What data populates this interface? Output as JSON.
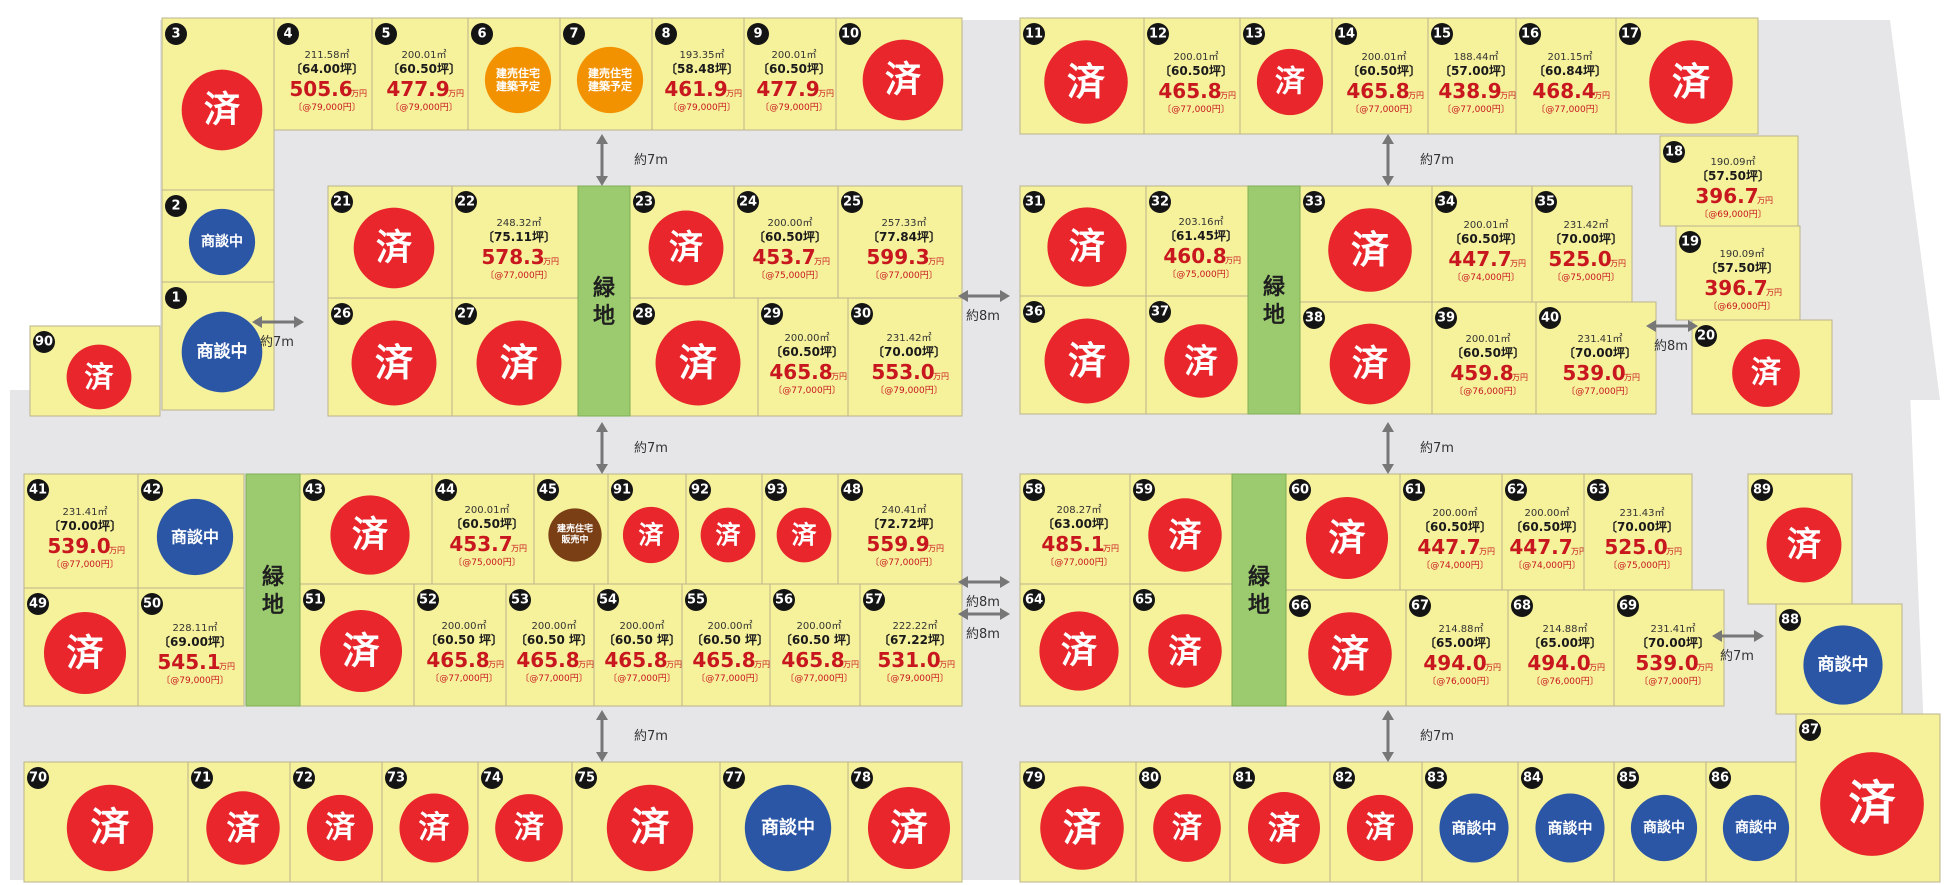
{
  "colors": {
    "sold": "#e8262b",
    "negotiating": "#2b56a6",
    "planned": "#f39200",
    "onsale": "#7b3f16",
    "lot": "#f6f19b",
    "green": "#9ccb6f",
    "road": "#e6e6e8"
  },
  "labels": {
    "sold": "済",
    "negotiating": "商談中",
    "planned": [
      "建売住宅",
      "建築予定"
    ],
    "onsale": [
      "建売住宅",
      "販売中"
    ],
    "unit": "万円",
    "green_belt": "緑地"
  },
  "roads": [
    "約7m",
    "約7m",
    "約7m",
    "約8m",
    "約8m",
    "約7m",
    "約7m",
    "約8m",
    "約8m",
    "約7m",
    "約7m",
    "約7m"
  ],
  "lots": [
    {
      "no": "1",
      "status": "negotiating"
    },
    {
      "no": "2",
      "status": "negotiating"
    },
    {
      "no": "3",
      "status": "sold"
    },
    {
      "no": "4",
      "status": "available",
      "area": "211.58㎡",
      "tsubo": "〔64.00坪〕",
      "price": "505.6",
      "per": "〔@79,000円〕"
    },
    {
      "no": "5",
      "status": "available",
      "area": "200.01㎡",
      "tsubo": "〔60.50坪〕",
      "price": "477.9",
      "per": "〔@79,000円〕"
    },
    {
      "no": "6",
      "status": "planned"
    },
    {
      "no": "7",
      "status": "planned"
    },
    {
      "no": "8",
      "status": "available",
      "area": "193.35㎡",
      "tsubo": "〔58.48坪〕",
      "price": "461.9",
      "per": "〔@79,000円〕"
    },
    {
      "no": "9",
      "status": "available",
      "area": "200.01㎡",
      "tsubo": "〔60.50坪〕",
      "price": "477.9",
      "per": "〔@79,000円〕"
    },
    {
      "no": "10",
      "status": "sold"
    },
    {
      "no": "11",
      "status": "sold"
    },
    {
      "no": "12",
      "status": "available",
      "area": "200.01㎡",
      "tsubo": "〔60.50坪〕",
      "price": "465.8",
      "per": "〔@77,000円〕"
    },
    {
      "no": "13",
      "status": "sold"
    },
    {
      "no": "14",
      "status": "available",
      "area": "200.01㎡",
      "tsubo": "〔60.50坪〕",
      "price": "465.8",
      "per": "〔@77,000円〕"
    },
    {
      "no": "15",
      "status": "available",
      "area": "188.44㎡",
      "tsubo": "〔57.00坪〕",
      "price": "438.9",
      "per": "〔@77,000円〕"
    },
    {
      "no": "16",
      "status": "available",
      "area": "201.15㎡",
      "tsubo": "〔60.84坪〕",
      "price": "468.4",
      "per": "〔@77,000円〕"
    },
    {
      "no": "17",
      "status": "sold"
    },
    {
      "no": "18",
      "status": "available",
      "area": "190.09㎡",
      "tsubo": "〔57.50坪〕",
      "price": "396.7",
      "per": "〔@69,000円〕"
    },
    {
      "no": "19",
      "status": "available",
      "area": "190.09㎡",
      "tsubo": "〔57.50坪〕",
      "price": "396.7",
      "per": "〔@69,000円〕"
    },
    {
      "no": "20",
      "status": "sold"
    },
    {
      "no": "21",
      "status": "sold"
    },
    {
      "no": "22",
      "status": "available",
      "area": "248.32㎡",
      "tsubo": "〔75.11坪〕",
      "price": "578.3",
      "per": "〔@77,000円〕"
    },
    {
      "no": "23",
      "status": "sold"
    },
    {
      "no": "24",
      "status": "available",
      "area": "200.00㎡",
      "tsubo": "〔60.50坪〕",
      "price": "453.7",
      "per": "〔@75,000円〕"
    },
    {
      "no": "25",
      "status": "available",
      "area": "257.33㎡",
      "tsubo": "〔77.84坪〕",
      "price": "599.3",
      "per": "〔@77,000円〕"
    },
    {
      "no": "26",
      "status": "sold"
    },
    {
      "no": "27",
      "status": "sold"
    },
    {
      "no": "28",
      "status": "sold"
    },
    {
      "no": "29",
      "status": "available",
      "area": "200.00㎡",
      "tsubo": "〔60.50坪〕",
      "price": "465.8",
      "per": "〔@77,000円〕"
    },
    {
      "no": "30",
      "status": "available",
      "area": "231.42㎡",
      "tsubo": "〔70.00坪〕",
      "price": "553.0",
      "per": "〔@79,000円〕"
    },
    {
      "no": "31",
      "status": "sold"
    },
    {
      "no": "32",
      "status": "available",
      "area": "203.16㎡",
      "tsubo": "〔61.45坪〕",
      "price": "460.8",
      "per": "〔@75,000円〕"
    },
    {
      "no": "33",
      "status": "sold"
    },
    {
      "no": "34",
      "status": "available",
      "area": "200.01㎡",
      "tsubo": "〔60.50坪〕",
      "price": "447.7",
      "per": "〔@74,000円〕"
    },
    {
      "no": "35",
      "status": "available",
      "area": "231.42㎡",
      "tsubo": "〔70.00坪〕",
      "price": "525.0",
      "per": "〔@75,000円〕"
    },
    {
      "no": "36",
      "status": "sold"
    },
    {
      "no": "37",
      "status": "sold"
    },
    {
      "no": "38",
      "status": "sold"
    },
    {
      "no": "39",
      "status": "available",
      "area": "200.01㎡",
      "tsubo": "〔60.50坪〕",
      "price": "459.8",
      "per": "〔@76,000円〕"
    },
    {
      "no": "40",
      "status": "available",
      "area": "231.41㎡",
      "tsubo": "〔70.00坪〕",
      "price": "539.0",
      "per": "〔@77,000円〕"
    },
    {
      "no": "41",
      "status": "available",
      "area": "231.41㎡",
      "tsubo": "〔70.00坪〕",
      "price": "539.0",
      "per": "〔@77,000円〕"
    },
    {
      "no": "42",
      "status": "negotiating"
    },
    {
      "no": "43",
      "status": "sold"
    },
    {
      "no": "44",
      "status": "available",
      "area": "200.01㎡",
      "tsubo": "〔60.50坪〕",
      "price": "453.7",
      "per": "〔@75,000円〕"
    },
    {
      "no": "45",
      "status": "onsale"
    },
    {
      "no": "48",
      "status": "available",
      "area": "240.41㎡",
      "tsubo": "〔72.72坪〕",
      "price": "559.9",
      "per": "〔@77,000円〕"
    },
    {
      "no": "49",
      "status": "sold"
    },
    {
      "no": "50",
      "status": "available",
      "area": "228.11㎡",
      "tsubo": "〔69.00坪〕",
      "price": "545.1",
      "per": "〔@79,000円〕"
    },
    {
      "no": "51",
      "status": "sold"
    },
    {
      "no": "52",
      "status": "available",
      "area": "200.00㎡",
      "tsubo": "〔60.50 坪〕",
      "price": "465.8",
      "per": "〔@77,000円〕"
    },
    {
      "no": "53",
      "status": "available",
      "area": "200.00㎡",
      "tsubo": "〔60.50 坪〕",
      "price": "465.8",
      "per": "〔@77,000円〕"
    },
    {
      "no": "54",
      "status": "available",
      "area": "200.00㎡",
      "tsubo": "〔60.50 坪〕",
      "price": "465.8",
      "per": "〔@77,000円〕"
    },
    {
      "no": "55",
      "status": "available",
      "area": "200.00㎡",
      "tsubo": "〔60.50 坪〕",
      "price": "465.8",
      "per": "〔@77,000円〕"
    },
    {
      "no": "56",
      "status": "available",
      "area": "200.00㎡",
      "tsubo": "〔60.50 坪〕",
      "price": "465.8",
      "per": "〔@77,000円〕"
    },
    {
      "no": "57",
      "status": "available",
      "area": "222.22㎡",
      "tsubo": "〔67.22坪〕",
      "price": "531.0",
      "per": "〔@79,000円〕"
    },
    {
      "no": "58",
      "status": "available",
      "area": "208.27㎡",
      "tsubo": "〔63.00坪〕",
      "price": "485.1",
      "per": "〔@77,000円〕"
    },
    {
      "no": "59",
      "status": "sold"
    },
    {
      "no": "60",
      "status": "sold"
    },
    {
      "no": "61",
      "status": "available",
      "area": "200.00㎡",
      "tsubo": "〔60.50坪〕",
      "price": "447.7",
      "per": "〔@74,000円〕"
    },
    {
      "no": "62",
      "status": "available",
      "area": "200.00㎡",
      "tsubo": "〔60.50坪〕",
      "price": "447.7",
      "per": "〔@74,000円〕"
    },
    {
      "no": "63",
      "status": "available",
      "area": "231.43㎡",
      "tsubo": "〔70.00坪〕",
      "price": "525.0",
      "per": "〔@75,000円〕"
    },
    {
      "no": "64",
      "status": "sold"
    },
    {
      "no": "65",
      "status": "sold"
    },
    {
      "no": "66",
      "status": "sold"
    },
    {
      "no": "67",
      "status": "available",
      "area": "214.88㎡",
      "tsubo": "〔65.00坪〕",
      "price": "494.0",
      "per": "〔@76,000円〕"
    },
    {
      "no": "68",
      "status": "available",
      "area": "214.88㎡",
      "tsubo": "〔65.00坪〕",
      "price": "494.0",
      "per": "〔@76,000円〕"
    },
    {
      "no": "69",
      "status": "available",
      "area": "231.41㎡",
      "tsubo": "〔70.00坪〕",
      "price": "539.0",
      "per": "〔@77,000円〕"
    },
    {
      "no": "70",
      "status": "sold"
    },
    {
      "no": "71",
      "status": "sold"
    },
    {
      "no": "72",
      "status": "sold"
    },
    {
      "no": "73",
      "status": "sold"
    },
    {
      "no": "74",
      "status": "sold"
    },
    {
      "no": "75",
      "status": "sold"
    },
    {
      "no": "77",
      "status": "negotiating"
    },
    {
      "no": "78",
      "status": "sold"
    },
    {
      "no": "79",
      "status": "sold"
    },
    {
      "no": "80",
      "status": "sold"
    },
    {
      "no": "81",
      "status": "sold"
    },
    {
      "no": "82",
      "status": "sold"
    },
    {
      "no": "83",
      "status": "negotiating"
    },
    {
      "no": "84",
      "status": "negotiating"
    },
    {
      "no": "85",
      "status": "negotiating"
    },
    {
      "no": "86",
      "status": "negotiating"
    },
    {
      "no": "87",
      "status": "sold"
    },
    {
      "no": "88",
      "status": "negotiating"
    },
    {
      "no": "89",
      "status": "sold"
    },
    {
      "no": "90",
      "status": "sold"
    },
    {
      "no": "91",
      "status": "sold"
    },
    {
      "no": "92",
      "status": "sold"
    },
    {
      "no": "93",
      "status": "sold"
    }
  ]
}
